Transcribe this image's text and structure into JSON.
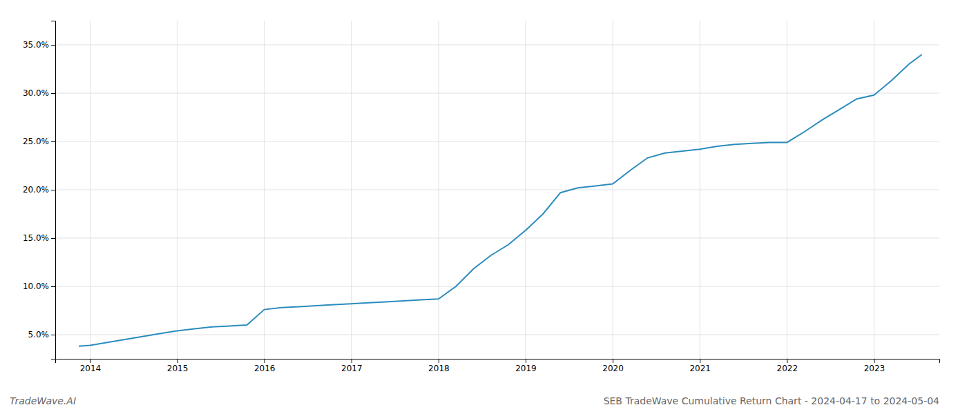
{
  "chart_data": {
    "type": "line",
    "title": "SEB TradeWave Cumulative Return Chart - 2024-04-17 to 2024-05-04",
    "annotations": [
      "TradeWave.AI"
    ],
    "color": "#2b8cbe",
    "x": [
      2013.87,
      2014.0,
      2014.2,
      2014.4,
      2014.6,
      2014.8,
      2015.0,
      2015.2,
      2015.4,
      2015.6,
      2015.8,
      2016.0,
      2016.2,
      2016.4,
      2016.6,
      2016.8,
      2017.0,
      2017.2,
      2017.4,
      2017.6,
      2017.8,
      2018.0,
      2018.2,
      2018.4,
      2018.6,
      2018.8,
      2019.0,
      2019.2,
      2019.4,
      2019.6,
      2019.8,
      2020.0,
      2020.2,
      2020.4,
      2020.6,
      2020.8,
      2021.0,
      2021.2,
      2021.4,
      2021.6,
      2021.8,
      2022.0,
      2022.2,
      2022.4,
      2022.6,
      2022.8,
      2023.0,
      2023.2,
      2023.4,
      2023.55
    ],
    "values": [
      0.038,
      0.039,
      0.042,
      0.045,
      0.048,
      0.051,
      0.054,
      0.056,
      0.058,
      0.059,
      0.06,
      0.076,
      0.078,
      0.079,
      0.08,
      0.081,
      0.082,
      0.083,
      0.084,
      0.085,
      0.086,
      0.087,
      0.1,
      0.118,
      0.132,
      0.143,
      0.158,
      0.175,
      0.197,
      0.202,
      0.204,
      0.206,
      0.22,
      0.233,
      0.238,
      0.24,
      0.242,
      0.245,
      0.247,
      0.248,
      0.249,
      0.249,
      0.26,
      0.272,
      0.283,
      0.294,
      0.298,
      0.313,
      0.33,
      0.34
    ],
    "xlim": [
      2013.6,
      2023.75
    ],
    "xticks": [
      2014,
      2015,
      2016,
      2017,
      2018,
      2019,
      2020,
      2021,
      2022,
      2023
    ],
    "ylim": [
      0.025,
      0.375
    ],
    "yticks": [
      {
        "value": 0.05,
        "label": "5.0%"
      },
      {
        "value": 0.1,
        "label": "10.0%"
      },
      {
        "value": 0.15,
        "label": "15.0%"
      },
      {
        "value": 0.2,
        "label": "20.0%"
      },
      {
        "value": 0.25,
        "label": "25.0%"
      },
      {
        "value": 0.3,
        "label": "30.0%"
      },
      {
        "value": 0.35,
        "label": "35.0%"
      }
    ],
    "grid": true
  }
}
